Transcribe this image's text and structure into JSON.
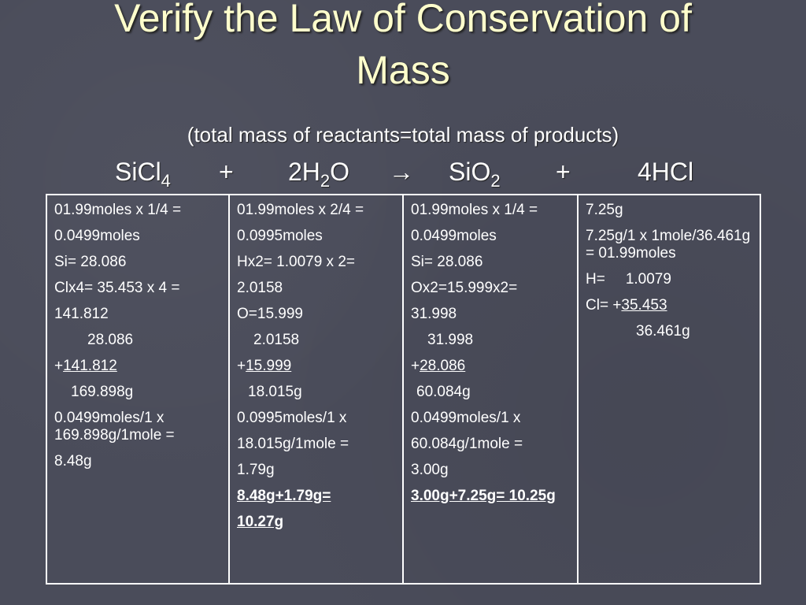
{
  "title_line1": "Verify the Law of Conservation of",
  "title_line2": "Mass",
  "subtitle": "(total mass of reactants=total mass of products)",
  "equation": {
    "t1_main": "SiCl",
    "t1_sub": "4",
    "plus1": "+",
    "t2_pre": "2H",
    "t2_sub": "2",
    "t2_post": "O",
    "arrow": "→",
    "t3_main": "SiO",
    "t3_sub": "2",
    "plus2": "+",
    "t4": "4HCl"
  },
  "col1": {
    "l1": "01.99moles x 1/4 =",
    "l2": "0.0499moles",
    "l3": "Si= 28.086",
    "l4": "Clx4= 35.453 x 4 =",
    "l5": "141.812",
    "l6": "28.086",
    "l7_plus": "+",
    "l7_u": "141.812",
    "l8": "169.898g",
    "l9": "0.0499moles/1 x 169.898g/1mole =",
    "l10": "8.48g"
  },
  "col2": {
    "l1": "01.99moles x 2/4 =",
    "l2": "0.0995moles",
    "l3": "Hx2= 1.0079 x 2=",
    "l4": "2.0158",
    "l5": "O=15.999",
    "l6": "2.0158",
    "l7_plus": "+",
    "l7_u": "15.999",
    "l8": "18.015g",
    "l9": "0.0995moles/1 x",
    "l10": "18.015g/1mole =",
    "l11": "1.79g",
    "l12": "8.48g+1.79g=",
    "l13": "10.27g"
  },
  "col3": {
    "l1": "01.99moles x 1/4 =",
    "l2": "0.0499moles",
    "l3": "Si= 28.086",
    "l4": "Ox2=15.999x2=",
    "l5": "31.998",
    "l6": "31.998",
    "l7_plus": "+",
    "l7_u": "28.086",
    "l8": "60.084g",
    "l9": "0.0499moles/1 x",
    "l10": "60.084g/1mole =",
    "l11": "3.00g",
    "l12": "3.00g+7.25g= 10.25g"
  },
  "col4": {
    "l1": "7.25g",
    "l2": "7.25g/1 x 1mole/36.461g = 01.99moles",
    "l3_label": "H=",
    "l3_val": "1.0079",
    "l4_pre": "Cl= +",
    "l4_u": "35.453",
    "l5": "36.461g"
  }
}
